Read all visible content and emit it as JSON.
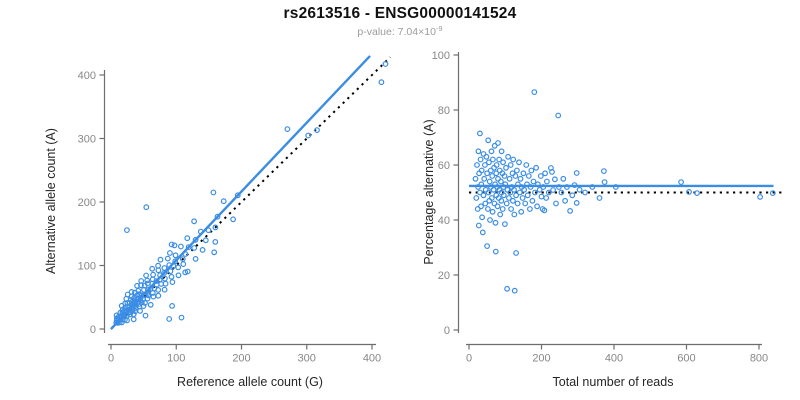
{
  "header": {
    "title": "rs2613516 - ENSG00000141524",
    "pvalue_prefix": "p-value: 7.04×10",
    "pvalue_exponent": "-9"
  },
  "colors": {
    "accent_blue": "#3b8de4",
    "identity_black": "#000000",
    "axis": "#6e6e6e",
    "tick_label": "#878787",
    "axis_title": "#262626",
    "subtitle_gray": "#9b9b9b"
  },
  "chart_data": {
    "type": "scatter",
    "linked_panels": true,
    "title": "rs2613516 - ENSG00000141524",
    "subtitle": "p-value: 7.04×10^-9",
    "points_reads_pct": [
      [
        18,
        55
      ],
      [
        20,
        48
      ],
      [
        22,
        60
      ],
      [
        24,
        44
      ],
      [
        25,
        52
      ],
      [
        26,
        65
      ],
      [
        27,
        38
      ],
      [
        28,
        57
      ],
      [
        30,
        50
      ],
      [
        30,
        71.5
      ],
      [
        32,
        62
      ],
      [
        33,
        45
      ],
      [
        34,
        53
      ],
      [
        35,
        58
      ],
      [
        36,
        41
      ],
      [
        38,
        35.5
      ],
      [
        40,
        64
      ],
      [
        40,
        49
      ],
      [
        42,
        55
      ],
      [
        44,
        60
      ],
      [
        45,
        46
      ],
      [
        50,
        30.5
      ],
      [
        46,
        51
      ],
      [
        48,
        63
      ],
      [
        50,
        57
      ],
      [
        52,
        44
      ],
      [
        53,
        69
      ],
      [
        54,
        50
      ],
      [
        55,
        61
      ],
      [
        56,
        47
      ],
      [
        57,
        54
      ],
      [
        58,
        40
      ],
      [
        60,
        58
      ],
      [
        60,
        52
      ],
      [
        62,
        65
      ],
      [
        63,
        48
      ],
      [
        64,
        56
      ],
      [
        65,
        43
      ],
      [
        66,
        62
      ],
      [
        68,
        51
      ],
      [
        69,
        59
      ],
      [
        70,
        46
      ],
      [
        71,
        67
      ],
      [
        72,
        53
      ],
      [
        73,
        39
      ],
      [
        74,
        28.5
      ],
      [
        75,
        57
      ],
      [
        75,
        49
      ],
      [
        76,
        60
      ],
      [
        78,
        52
      ],
      [
        79,
        45
      ],
      [
        80,
        68
      ],
      [
        80,
        55
      ],
      [
        82,
        48
      ],
      [
        83,
        62
      ],
      [
        84,
        51
      ],
      [
        85,
        58
      ],
      [
        86,
        42
      ],
      [
        88,
        54
      ],
      [
        89,
        47
      ],
      [
        90,
        65
      ],
      [
        90,
        50
      ],
      [
        92,
        57
      ],
      [
        93,
        44
      ],
      [
        94,
        61
      ],
      [
        95,
        52
      ],
      [
        96,
        49
      ],
      [
        98,
        56
      ],
      [
        99,
        38.5
      ],
      [
        100,
        53
      ],
      [
        102,
        59
      ],
      [
        104,
        46
      ],
      [
        105,
        15
      ],
      [
        106,
        51
      ],
      [
        108,
        63
      ],
      [
        110,
        48
      ],
      [
        112,
        55
      ],
      [
        114,
        50
      ],
      [
        115,
        60
      ],
      [
        116,
        44
      ],
      [
        118,
        52
      ],
      [
        120,
        57
      ],
      [
        121,
        47
      ],
      [
        122,
        62
      ],
      [
        124,
        51
      ],
      [
        125,
        42
      ],
      [
        126,
        14.3
      ],
      [
        128,
        56
      ],
      [
        130,
        28
      ],
      [
        130,
        49
      ],
      [
        132,
        58
      ],
      [
        134,
        46
      ],
      [
        135,
        53
      ],
      [
        138,
        61
      ],
      [
        140,
        50
      ],
      [
        142,
        55
      ],
      [
        144,
        43
      ],
      [
        145,
        52
      ],
      [
        148,
        48
      ],
      [
        150,
        57
      ],
      [
        152,
        51
      ],
      [
        155,
        46
      ],
      [
        158,
        60
      ],
      [
        160,
        53
      ],
      [
        162,
        49
      ],
      [
        165,
        56
      ],
      [
        168,
        44
      ],
      [
        170,
        52
      ],
      [
        172,
        58
      ],
      [
        175,
        47
      ],
      [
        178,
        54
      ],
      [
        180,
        86.5
      ],
      [
        182,
        50
      ],
      [
        185,
        59
      ],
      [
        188,
        45
      ],
      [
        190,
        53
      ],
      [
        195,
        51
      ],
      [
        198,
        56
      ],
      [
        200,
        48.5
      ],
      [
        203,
        44
      ],
      [
        205,
        52
      ],
      [
        208,
        43.5
      ],
      [
        210,
        57
      ],
      [
        213,
        48
      ],
      [
        215,
        54
      ],
      [
        220,
        50
      ],
      [
        226,
        58.9
      ],
      [
        229,
        57.5
      ],
      [
        232,
        50.9
      ],
      [
        237,
        54.8
      ],
      [
        240,
        46
      ],
      [
        246,
        78
      ],
      [
        248,
        52
      ],
      [
        255,
        50
      ],
      [
        260,
        55
      ],
      [
        265,
        47
      ],
      [
        270,
        52
      ],
      [
        279,
        43.3
      ],
      [
        285,
        49
      ],
      [
        291,
        52.7
      ],
      [
        297,
        57.1
      ],
      [
        297,
        46.2
      ],
      [
        305,
        51
      ],
      [
        320,
        50
      ],
      [
        340,
        52
      ],
      [
        360,
        48
      ],
      [
        372,
        57.8
      ],
      [
        374,
        53.8
      ],
      [
        405,
        52
      ],
      [
        585,
        53.8
      ],
      [
        607,
        50.2
      ],
      [
        629,
        49.8
      ],
      [
        803,
        48.4
      ],
      [
        838,
        49.8
      ]
    ],
    "panels": [
      {
        "id": "left",
        "xlabel": "Reference allele count (G)",
        "ylabel": "Alternative allele count (A)",
        "xlim": [
          0,
          430
        ],
        "ylim": [
          0,
          430
        ],
        "xticks": [
          0,
          100,
          200,
          300,
          400
        ],
        "yticks": [
          0,
          100,
          200,
          300,
          400
        ],
        "point_mapping": "x = reads*(100-pct)/100, y = reads*pct/100",
        "lines": [
          {
            "name": "regression",
            "style": "solid",
            "color_key": "accent_blue",
            "x1": 0,
            "y1": 0,
            "x2": 397,
            "y2": 430
          },
          {
            "name": "identity",
            "style": "dotted",
            "color_key": "identity_black",
            "x1": 0,
            "y1": 0,
            "x2": 428,
            "y2": 428
          }
        ]
      },
      {
        "id": "right",
        "xlabel": "Total number of reads",
        "ylabel": "Percentage alternative (A)",
        "xlim": [
          0,
          870
        ],
        "ylim": [
          0,
          100
        ],
        "xticks": [
          0,
          200,
          400,
          600,
          800
        ],
        "yticks": [
          0,
          20,
          40,
          60,
          80,
          100
        ],
        "point_mapping": "x = reads, y = pct",
        "lines": [
          {
            "name": "mean-percentage",
            "style": "solid",
            "color_key": "accent_blue",
            "x1": 0,
            "y1": 52.4,
            "x2": 840,
            "y2": 52.4
          },
          {
            "name": "fifty-percent-reference",
            "style": "dotted",
            "color_key": "identity_black",
            "x1": 0,
            "y1": 50,
            "x2": 868,
            "y2": 50
          }
        ]
      }
    ]
  }
}
